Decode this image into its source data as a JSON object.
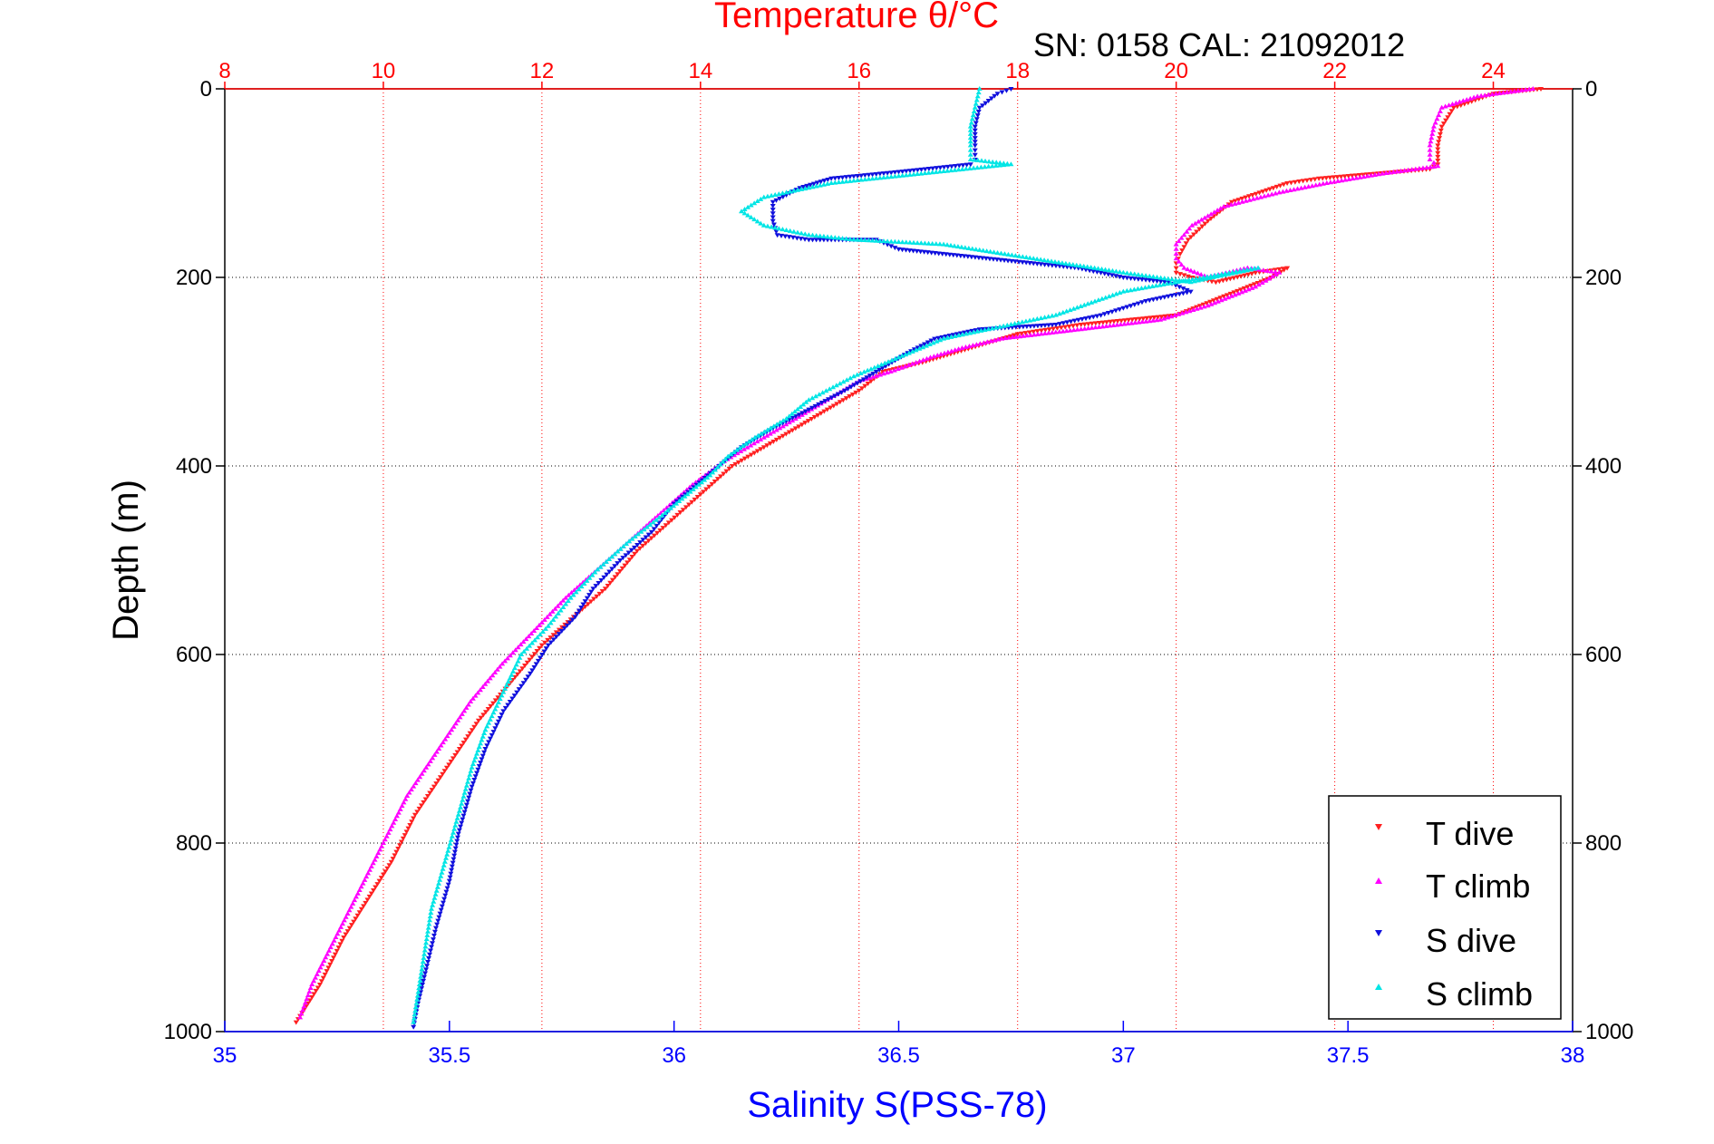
{
  "colors": {
    "temperature_axis": "#ff0000",
    "salinity_axis": "#0000ff",
    "t_dive": "#ff2020",
    "t_climb": "#ff00ff",
    "s_dive": "#1010dd",
    "s_climb": "#00e5e5",
    "grid": "#000000",
    "temperature_grid": "#ff0000"
  },
  "chart_data": {
    "type": "scatter",
    "title": "Temperature θ/°C",
    "header": "SN: 0158  CAL: 21092012",
    "ylabel": "Depth (m)",
    "xlabel_bottom": "Salinity S(PSS-78)",
    "xlabel_top": "Temperature θ/°C",
    "y_reversed": true,
    "ylim": [
      0,
      1000
    ],
    "y_ticks": [
      "0",
      "200",
      "400",
      "600",
      "800",
      "1000"
    ],
    "y_tick_values": [
      0,
      200,
      400,
      600,
      800,
      1000
    ],
    "x_bottom": {
      "label": "Salinity S(PSS-78)",
      "lim": [
        35,
        38
      ],
      "ticks": [
        "35",
        "35.5",
        "36",
        "36.5",
        "37",
        "37.5",
        "38"
      ],
      "tick_values": [
        35,
        35.5,
        36,
        36.5,
        37,
        37.5,
        38
      ]
    },
    "x_top": {
      "label": "Temperature θ/°C",
      "lim": [
        8,
        25
      ],
      "ticks": [
        "8",
        "10",
        "12",
        "14",
        "16",
        "18",
        "20",
        "22",
        "24"
      ],
      "tick_values": [
        8,
        10,
        12,
        14,
        16,
        18,
        20,
        22,
        24
      ]
    },
    "grid": {
      "horizontal": true,
      "vertical_temperature": true
    },
    "legend": {
      "position": "bottom-right",
      "entries": [
        "T dive",
        "T climb",
        "S dive",
        "S climb"
      ]
    },
    "series": [
      {
        "name": "T dive",
        "axis": "temperature",
        "marker": "triangle-down",
        "x": [
          24.6,
          24.0,
          23.5,
          23.35,
          23.3,
          23.3,
          23.2,
          22.5,
          21.8,
          21.4,
          20.7,
          20.4,
          20.15,
          20.05,
          20.0,
          20.0,
          20.2,
          20.5,
          21.0,
          21.4,
          21.2,
          20.6,
          20.0,
          19.4,
          18.8,
          18.4,
          18.0,
          17.6,
          17.2,
          16.8,
          16.3,
          16.0,
          15.6,
          15.2,
          14.8,
          14.4,
          14.0,
          13.6,
          13.2,
          12.8,
          12.4,
          12.0,
          11.6,
          11.2,
          10.8,
          10.4,
          10.1,
          9.8,
          9.5,
          9.2,
          8.9
        ],
        "y": [
          0,
          5,
          20,
          40,
          60,
          80,
          85,
          90,
          95,
          100,
          120,
          140,
          160,
          175,
          185,
          195,
          200,
          205,
          195,
          190,
          200,
          220,
          240,
          245,
          250,
          255,
          260,
          270,
          280,
          290,
          300,
          320,
          340,
          360,
          380,
          400,
          430,
          460,
          490,
          530,
          560,
          590,
          630,
          670,
          720,
          770,
          820,
          860,
          900,
          950,
          990
        ]
      },
      {
        "name": "T climb",
        "axis": "temperature",
        "marker": "triangle-up",
        "x": [
          24.5,
          23.8,
          23.35,
          23.25,
          23.2,
          23.2,
          23.3,
          22.6,
          21.9,
          21.3,
          20.6,
          20.2,
          20.0,
          20.0,
          20.1,
          20.4,
          20.9,
          21.3,
          21.0,
          20.4,
          19.8,
          19.3,
          18.8,
          18.3,
          17.8,
          17.3,
          16.9,
          16.4,
          16.0,
          15.6,
          15.2,
          14.8,
          14.3,
          13.9,
          13.5,
          13.1,
          12.7,
          12.3,
          11.9,
          11.5,
          11.1,
          10.7,
          10.3,
          10.0,
          9.7,
          9.4,
          9.1,
          8.95
        ],
        "y": [
          0,
          8,
          20,
          40,
          60,
          75,
          82,
          90,
          100,
          110,
          125,
          145,
          165,
          180,
          190,
          200,
          190,
          195,
          210,
          230,
          245,
          250,
          255,
          260,
          265,
          275,
          285,
          300,
          310,
          330,
          350,
          370,
          395,
          420,
          450,
          480,
          510,
          540,
          575,
          610,
          650,
          700,
          750,
          800,
          850,
          900,
          950,
          985
        ]
      },
      {
        "name": "S dive",
        "axis": "salinity",
        "marker": "triangle-down",
        "x": [
          36.75,
          36.72,
          36.68,
          36.67,
          36.67,
          36.67,
          36.66,
          36.5,
          36.35,
          36.28,
          36.22,
          36.22,
          36.23,
          36.3,
          36.45,
          36.5,
          36.8,
          36.9,
          37.0,
          37.1,
          37.15,
          37.05,
          36.95,
          36.85,
          36.68,
          36.58,
          36.52,
          36.45,
          36.38,
          36.3,
          36.22,
          36.15,
          36.1,
          36.05,
          36.0,
          35.95,
          35.88,
          35.82,
          35.78,
          35.72,
          35.68,
          35.62,
          35.58,
          35.55,
          35.52,
          35.5,
          35.47,
          35.45,
          35.43,
          35.42
        ],
        "y": [
          0,
          5,
          20,
          40,
          60,
          75,
          80,
          88,
          95,
          105,
          120,
          140,
          155,
          160,
          160,
          170,
          185,
          190,
          200,
          205,
          215,
          225,
          240,
          250,
          255,
          265,
          280,
          300,
          320,
          340,
          360,
          380,
          400,
          420,
          440,
          470,
          500,
          530,
          560,
          590,
          620,
          660,
          700,
          740,
          790,
          840,
          890,
          930,
          970,
          995
        ]
      },
      {
        "name": "S climb",
        "axis": "salinity",
        "marker": "triangle-up",
        "x": [
          36.68,
          36.67,
          36.66,
          36.66,
          36.66,
          36.75,
          36.55,
          36.35,
          36.2,
          36.15,
          36.2,
          36.3,
          36.4,
          36.6,
          36.8,
          37.0,
          37.15,
          37.3,
          37.0,
          36.85,
          36.7,
          36.6,
          36.5,
          36.4,
          36.3,
          36.25,
          36.18,
          36.12,
          36.08,
          36.03,
          35.98,
          35.9,
          35.83,
          35.77,
          35.72,
          35.66,
          35.62,
          35.58,
          35.55,
          35.52,
          35.49,
          35.46,
          35.44,
          35.42
        ],
        "y": [
          0,
          20,
          40,
          60,
          75,
          80,
          90,
          100,
          115,
          130,
          145,
          155,
          160,
          165,
          180,
          195,
          205,
          190,
          215,
          240,
          255,
          265,
          285,
          305,
          330,
          350,
          370,
          390,
          410,
          430,
          450,
          480,
          510,
          540,
          570,
          600,
          640,
          680,
          720,
          770,
          820,
          870,
          930,
          990
        ]
      }
    ]
  }
}
